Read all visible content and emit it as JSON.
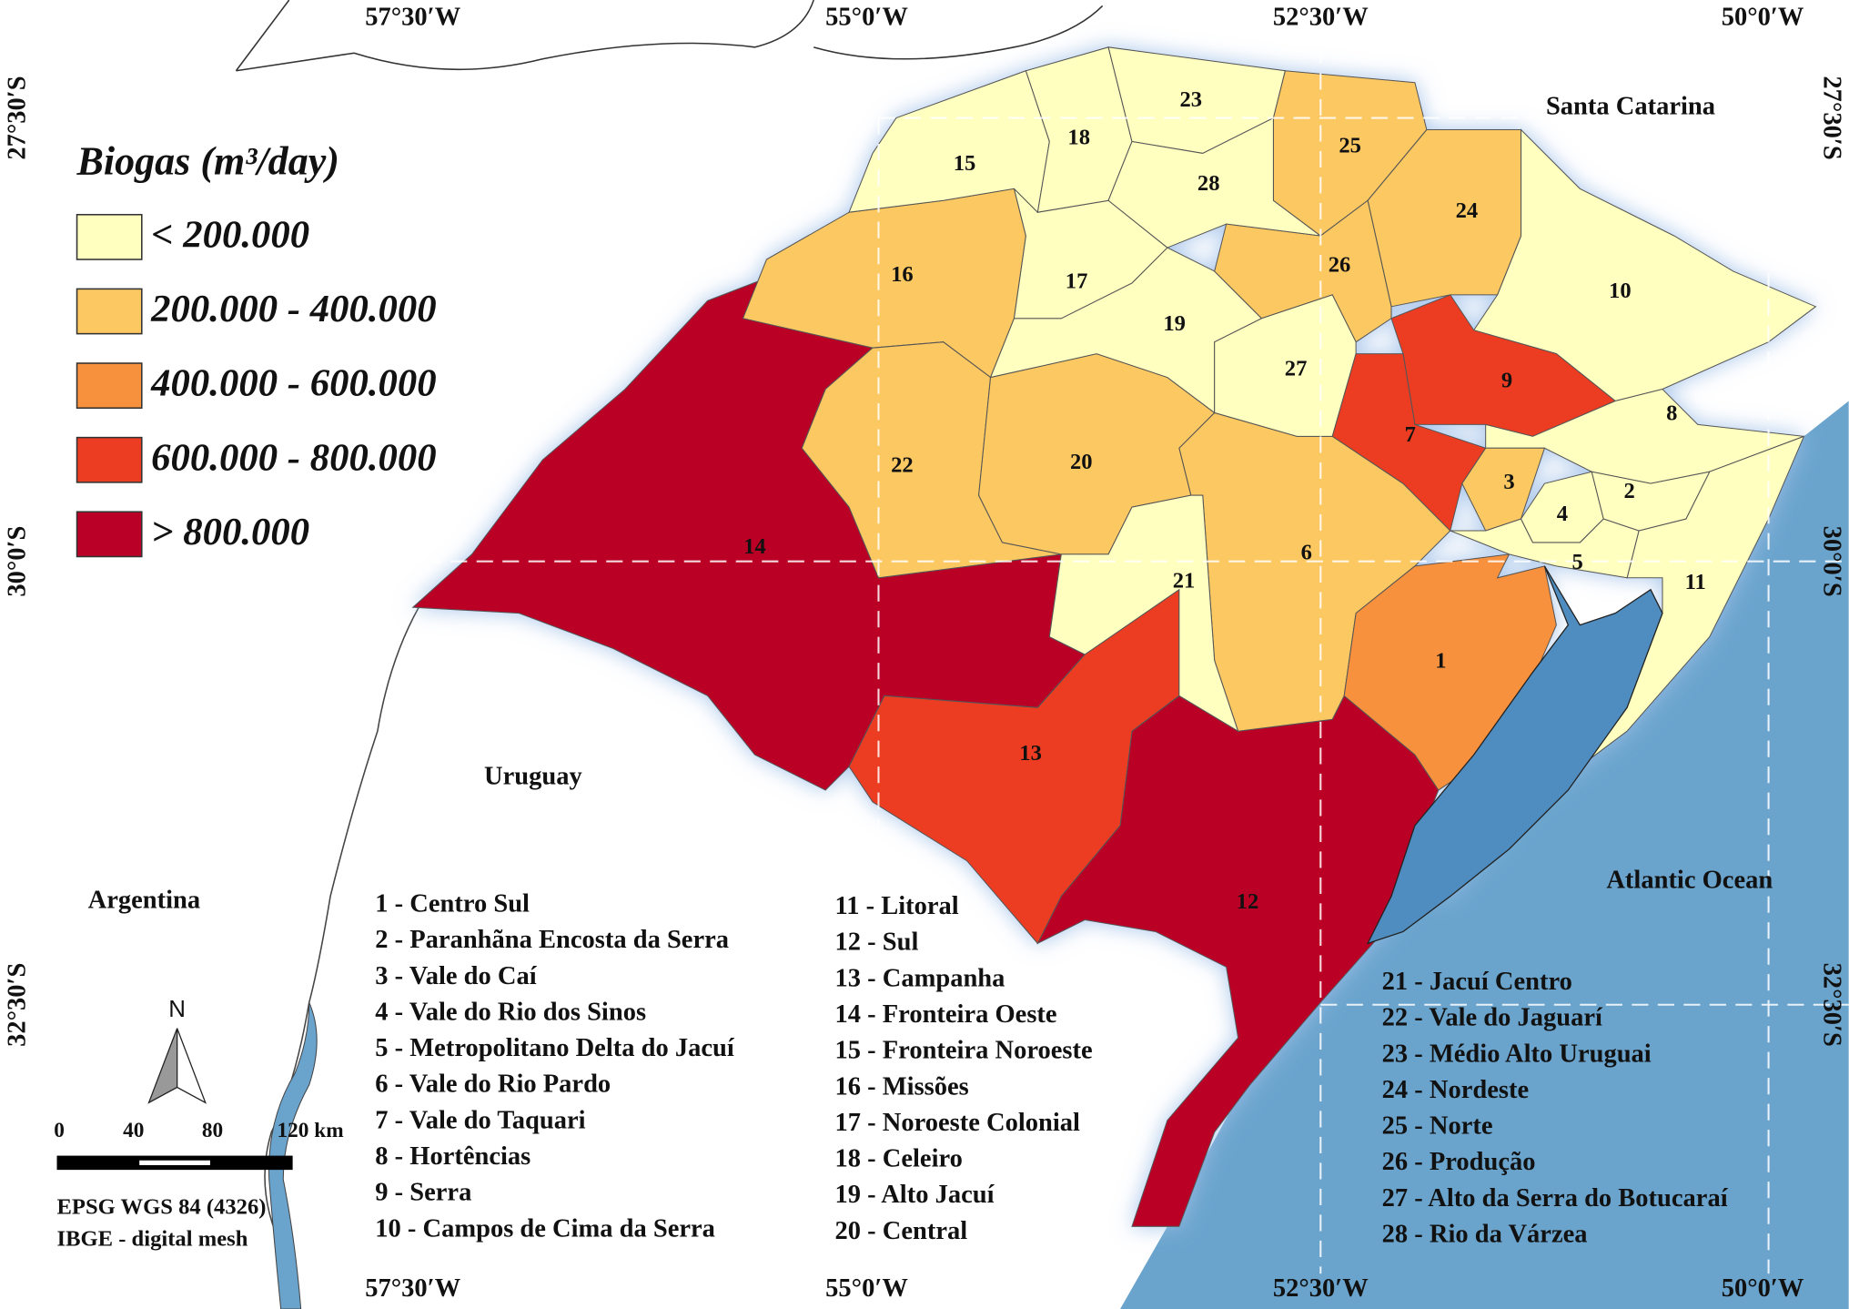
{
  "coordinates": {
    "top": [
      "57°30′W",
      "55°0′W",
      "52°30′W",
      "50°0′W"
    ],
    "bottom": [
      "57°30′W",
      "55°0′W",
      "52°30′W",
      "50°0′W"
    ],
    "left": [
      "27°30′S",
      "30°0′S",
      "32°30′S"
    ],
    "right": [
      "27°30′S",
      "30°0′S",
      "32°30′S"
    ]
  },
  "legend": {
    "title": "Biogas (m³/day)",
    "items": [
      {
        "label": "< 200.000",
        "color": "#ffffc0"
      },
      {
        "label": "200.000 - 400.000",
        "color": "#fcc862"
      },
      {
        "label": "400.000 - 600.000",
        "color": "#f7913d"
      },
      {
        "label": "600.000 - 800.000",
        "color": "#ec3d23"
      },
      {
        "label": "> 800.000",
        "color": "#bb0027"
      }
    ]
  },
  "places": [
    "Santa Catarina",
    "Uruguay",
    "Argentina",
    "Atlantic Ocean"
  ],
  "regions": [
    {
      "label": "1",
      "color": "#f7913d"
    },
    {
      "label": "2",
      "color": "#ffffc0"
    },
    {
      "label": "3",
      "color": "#fcc862"
    },
    {
      "label": "4",
      "color": "#ffffc0"
    },
    {
      "label": "5",
      "color": "#ffffc0"
    },
    {
      "label": "6",
      "color": "#fcc862"
    },
    {
      "label": "7",
      "color": "#ec3d23"
    },
    {
      "label": "8",
      "color": "#ffffc0"
    },
    {
      "label": "9",
      "color": "#ec3d23"
    },
    {
      "label": "10",
      "color": "#ffffc0"
    },
    {
      "label": "11",
      "color": "#ffffc0"
    },
    {
      "label": "12",
      "color": "#bb0027"
    },
    {
      "label": "13",
      "color": "#ec3d23"
    },
    {
      "label": "14",
      "color": "#bb0027"
    },
    {
      "label": "15",
      "color": "#ffffc0"
    },
    {
      "label": "16",
      "color": "#fcc862"
    },
    {
      "label": "17",
      "color": "#ffffc0"
    },
    {
      "label": "18",
      "color": "#ffffc0"
    },
    {
      "label": "19",
      "color": "#ffffc0"
    },
    {
      "label": "20",
      "color": "#fcc862"
    },
    {
      "label": "21",
      "color": "#ffffc0"
    },
    {
      "label": "22",
      "color": "#fcc862"
    },
    {
      "label": "23",
      "color": "#ffffc0"
    },
    {
      "label": "24",
      "color": "#fcc862"
    },
    {
      "label": "25",
      "color": "#fcc862"
    },
    {
      "label": "26",
      "color": "#fcc862"
    },
    {
      "label": "27",
      "color": "#ffffc0"
    },
    {
      "label": "28",
      "color": "#ffffc0"
    }
  ],
  "region_list": [
    "1 - Centro Sul",
    "2 - Paranhãna Encosta da Serra",
    "3 - Vale do Caí",
    "4 - Vale do Rio dos Sinos",
    "5 - Metropolitano Delta do Jacuí",
    "6 - Vale do Rio Pardo",
    "7 - Vale do Taquari",
    "8 - Hortências",
    "9 - Serra",
    "10 - Campos de Cima da Serra",
    "11 - Litoral",
    "12 - Sul",
    "13 - Campanha",
    "14 - Fronteira Oeste",
    "15 - Fronteira Noroeste",
    "16 - Missões",
    "17 - Noroeste Colonial",
    "18 - Celeiro",
    "19 - Alto Jacuí",
    "20 - Central",
    "21 - Jacuí Centro",
    "22 - Vale do Jaguarí",
    "23 - Médio Alto Uruguai",
    "24 - Nordeste",
    "25 - Norte",
    "26 - Produção",
    "27 - Alto da Serra do Botucaraí",
    "28 - Rio da Várzea"
  ],
  "scale": [
    "0",
    "40",
    "80",
    "120 km"
  ],
  "north": "N",
  "credits": [
    "EPSG WGS 84 (4326)",
    "IBGE - digital mesh"
  ]
}
